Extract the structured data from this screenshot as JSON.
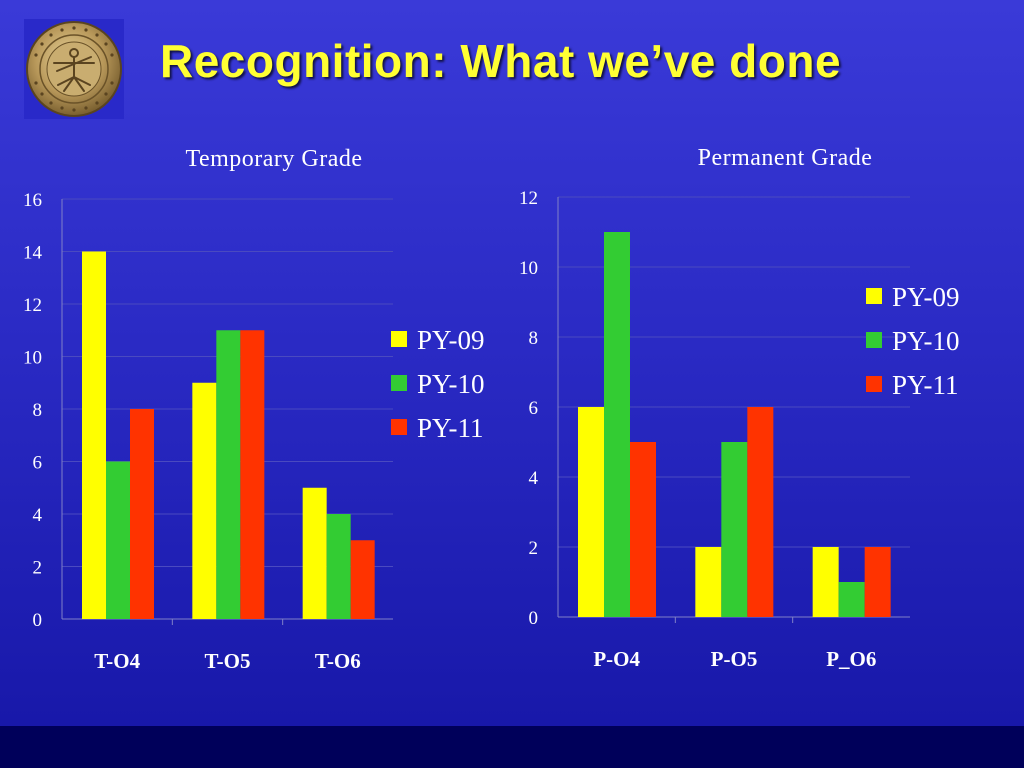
{
  "slide": {
    "title": "Recognition: What we’ve done",
    "logo_icon": "seal-emblem"
  },
  "chart_data": [
    {
      "type": "bar",
      "title": "Temporary Grade",
      "categories": [
        "T-O4",
        "T-O5",
        "T-O6"
      ],
      "series": [
        {
          "name": "PY-09",
          "color": "#ffff00",
          "values": [
            14,
            9,
            5
          ]
        },
        {
          "name": "PY-10",
          "color": "#33cc33",
          "values": [
            6,
            11,
            4
          ]
        },
        {
          "name": "PY-11",
          "color": "#ff3300",
          "values": [
            8,
            11,
            3
          ]
        }
      ],
      "ylim": [
        0,
        16
      ],
      "yticks": [
        "0",
        "2",
        "4",
        "6",
        "8",
        "10",
        "12",
        "14",
        "16"
      ],
      "grid": true,
      "legend": "right"
    },
    {
      "type": "bar",
      "title": "Permanent Grade",
      "categories": [
        "P-O4",
        "P-O5",
        "P_O6"
      ],
      "series": [
        {
          "name": "PY-09",
          "color": "#ffff00",
          "values": [
            6,
            2,
            2
          ]
        },
        {
          "name": "PY-10",
          "color": "#33cc33",
          "values": [
            11,
            5,
            1
          ]
        },
        {
          "name": "PY-11",
          "color": "#ff3300",
          "values": [
            5,
            6,
            2
          ]
        }
      ],
      "ylim": [
        0,
        12
      ],
      "yticks": [
        "0",
        "2",
        "4",
        "6",
        "8",
        "10",
        "12"
      ],
      "grid": true,
      "legend": "top-right"
    }
  ]
}
